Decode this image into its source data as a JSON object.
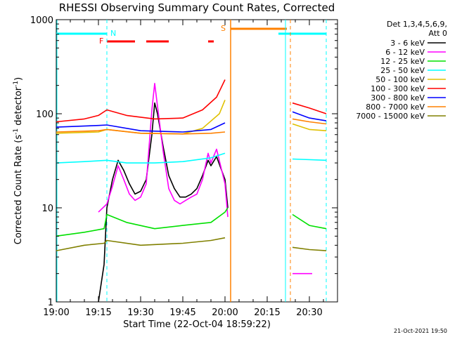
{
  "chart_data": {
    "type": "line",
    "title": "RHESSI Observing Summary Count Rates, Corrected",
    "xlabel": "Start Time (22-Oct-04 18:59:22)",
    "ylabel": "Corrected Count Rate (s⁻¹ detector⁻¹)",
    "ylabel_parts": [
      "Corrected Count Rate (s",
      "-1",
      " detector",
      "-1",
      ")"
    ],
    "y_scale": "log",
    "ylim": [
      1,
      1000
    ],
    "xlim": [
      "19:00",
      "20:40"
    ],
    "x_ticks": [
      "19:00",
      "19:15",
      "19:30",
      "19:45",
      "20:00",
      "20:15",
      "20:30"
    ],
    "y_ticks": [
      "1",
      "10",
      "100",
      "1000"
    ],
    "legend_title": [
      "Det 1,3,4,5,6,9,",
      "Att 0"
    ],
    "legend_position": "right",
    "footer": "21-Oct-2021 19:50",
    "flags": {
      "night_label": "N",
      "flare_label": "F",
      "saa_label": "S",
      "night": [
        [
          "19:00",
          "19:18"
        ],
        [
          "20:19",
          "20:36"
        ]
      ],
      "flare": [
        [
          "19:18",
          "19:28"
        ],
        [
          "19:32",
          "19:40"
        ],
        [
          "19:54",
          "19:56"
        ]
      ],
      "saa": [
        [
          "20:02",
          "20:22"
        ]
      ],
      "data_gap": [
        [
          "20:02",
          "20:24"
        ]
      ],
      "orbit_marks_cyan": [
        "19:18",
        "20:36"
      ],
      "orbit_marks_orange": [
        "20:22"
      ]
    },
    "series": [
      {
        "name": "3 - 6 keV",
        "color": "#000000",
        "points": [
          [
            "19:15",
            1
          ],
          [
            "19:17",
            2.5
          ],
          [
            "19:18",
            10
          ],
          [
            "19:20",
            20
          ],
          [
            "19:22",
            32
          ],
          [
            "19:24",
            25
          ],
          [
            "19:26",
            18
          ],
          [
            "19:28",
            14
          ],
          [
            "19:30",
            15
          ],
          [
            "19:32",
            20
          ],
          [
            "19:34",
            60
          ],
          [
            "19:35",
            130
          ],
          [
            "19:36",
            100
          ],
          [
            "19:38",
            45
          ],
          [
            "19:40",
            22
          ],
          [
            "19:42",
            16
          ],
          [
            "19:44",
            13
          ],
          [
            "19:46",
            13
          ],
          [
            "19:48",
            14
          ],
          [
            "19:50",
            16
          ],
          [
            "19:52",
            22
          ],
          [
            "19:54",
            32
          ],
          [
            "19:55",
            28
          ],
          [
            "19:57",
            35
          ],
          [
            "20:00",
            20
          ],
          [
            "20:01",
            10
          ]
        ]
      },
      {
        "name": "6 - 12 keV",
        "color": "#ff00ff",
        "points": [
          [
            "19:15",
            9
          ],
          [
            "19:18",
            11
          ],
          [
            "19:20",
            17
          ],
          [
            "19:22",
            28
          ],
          [
            "19:24",
            20
          ],
          [
            "19:26",
            14
          ],
          [
            "19:28",
            12
          ],
          [
            "19:30",
            13
          ],
          [
            "19:32",
            18
          ],
          [
            "19:34",
            110
          ],
          [
            "19:35",
            210
          ],
          [
            "19:36",
            120
          ],
          [
            "19:38",
            40
          ],
          [
            "19:40",
            16
          ],
          [
            "19:42",
            12
          ],
          [
            "19:44",
            11
          ],
          [
            "19:46",
            12
          ],
          [
            "19:48",
            13
          ],
          [
            "19:50",
            14
          ],
          [
            "19:52",
            20
          ],
          [
            "19:54",
            38
          ],
          [
            "19:55",
            30
          ],
          [
            "19:57",
            42
          ],
          [
            "20:00",
            18
          ],
          [
            "20:01",
            8
          ],
          [
            "20:24",
            2
          ],
          [
            "20:31",
            2
          ]
        ]
      },
      {
        "name": "12 - 25 keV",
        "color": "#00e000",
        "points": [
          [
            "19:00",
            5
          ],
          [
            "19:10",
            5.5
          ],
          [
            "19:17",
            6
          ],
          [
            "19:18",
            8.5
          ],
          [
            "19:25",
            7
          ],
          [
            "19:35",
            6
          ],
          [
            "19:45",
            6.5
          ],
          [
            "19:55",
            7
          ],
          [
            "20:00",
            9
          ],
          [
            "20:01",
            10
          ],
          [
            "20:24",
            8.5
          ],
          [
            "20:30",
            6.5
          ],
          [
            "20:36",
            6
          ]
        ]
      },
      {
        "name": "25 - 50 keV",
        "color": "#00ffff",
        "points": [
          [
            "19:00",
            30
          ],
          [
            "19:10",
            31
          ],
          [
            "19:18",
            32
          ],
          [
            "19:25",
            30
          ],
          [
            "19:35",
            30
          ],
          [
            "19:45",
            31
          ],
          [
            "19:55",
            34
          ],
          [
            "20:00",
            38
          ],
          [
            "20:24",
            33
          ],
          [
            "20:36",
            32
          ]
        ]
      },
      {
        "name": "50 - 100 keV",
        "color": "#e0c000",
        "points": [
          [
            "19:00",
            62
          ],
          [
            "19:15",
            64
          ],
          [
            "19:18",
            68
          ],
          [
            "19:30",
            62
          ],
          [
            "19:45",
            61
          ],
          [
            "19:52",
            70
          ],
          [
            "19:58",
            100
          ],
          [
            "20:00",
            140
          ],
          [
            "20:24",
            78
          ],
          [
            "20:30",
            68
          ],
          [
            "20:36",
            66
          ]
        ]
      },
      {
        "name": "100 - 300 keV",
        "color": "#ff0000",
        "points": [
          [
            "19:00",
            82
          ],
          [
            "19:10",
            88
          ],
          [
            "19:15",
            96
          ],
          [
            "19:18",
            110
          ],
          [
            "19:25",
            96
          ],
          [
            "19:35",
            88
          ],
          [
            "19:45",
            90
          ],
          [
            "19:52",
            110
          ],
          [
            "19:57",
            150
          ],
          [
            "20:00",
            230
          ],
          [
            "20:24",
            130
          ],
          [
            "20:30",
            115
          ],
          [
            "20:36",
            100
          ]
        ]
      },
      {
        "name": "300 - 800 keV",
        "color": "#0000ff",
        "points": [
          [
            "19:00",
            72
          ],
          [
            "19:15",
            75
          ],
          [
            "19:18",
            76
          ],
          [
            "19:30",
            66
          ],
          [
            "19:45",
            64
          ],
          [
            "19:55",
            68
          ],
          [
            "20:00",
            80
          ],
          [
            "20:24",
            105
          ],
          [
            "20:30",
            90
          ],
          [
            "20:36",
            84
          ]
        ]
      },
      {
        "name": "800 - 7000 keV",
        "color": "#ff8000",
        "points": [
          [
            "19:00",
            64
          ],
          [
            "19:15",
            66
          ],
          [
            "19:18",
            68
          ],
          [
            "19:30",
            62
          ],
          [
            "19:45",
            61
          ],
          [
            "19:55",
            62
          ],
          [
            "20:00",
            64
          ],
          [
            "20:24",
            88
          ],
          [
            "20:30",
            82
          ],
          [
            "20:36",
            78
          ]
        ]
      },
      {
        "name": "7000 - 15000 keV",
        "color": "#808000",
        "points": [
          [
            "19:00",
            3.5
          ],
          [
            "19:10",
            4
          ],
          [
            "19:17",
            4.2
          ],
          [
            "19:18",
            4.5
          ],
          [
            "19:30",
            4
          ],
          [
            "19:45",
            4.2
          ],
          [
            "19:55",
            4.5
          ],
          [
            "20:00",
            4.8
          ],
          [
            "20:24",
            3.8
          ],
          [
            "20:30",
            3.6
          ],
          [
            "20:36",
            3.5
          ]
        ]
      }
    ]
  }
}
